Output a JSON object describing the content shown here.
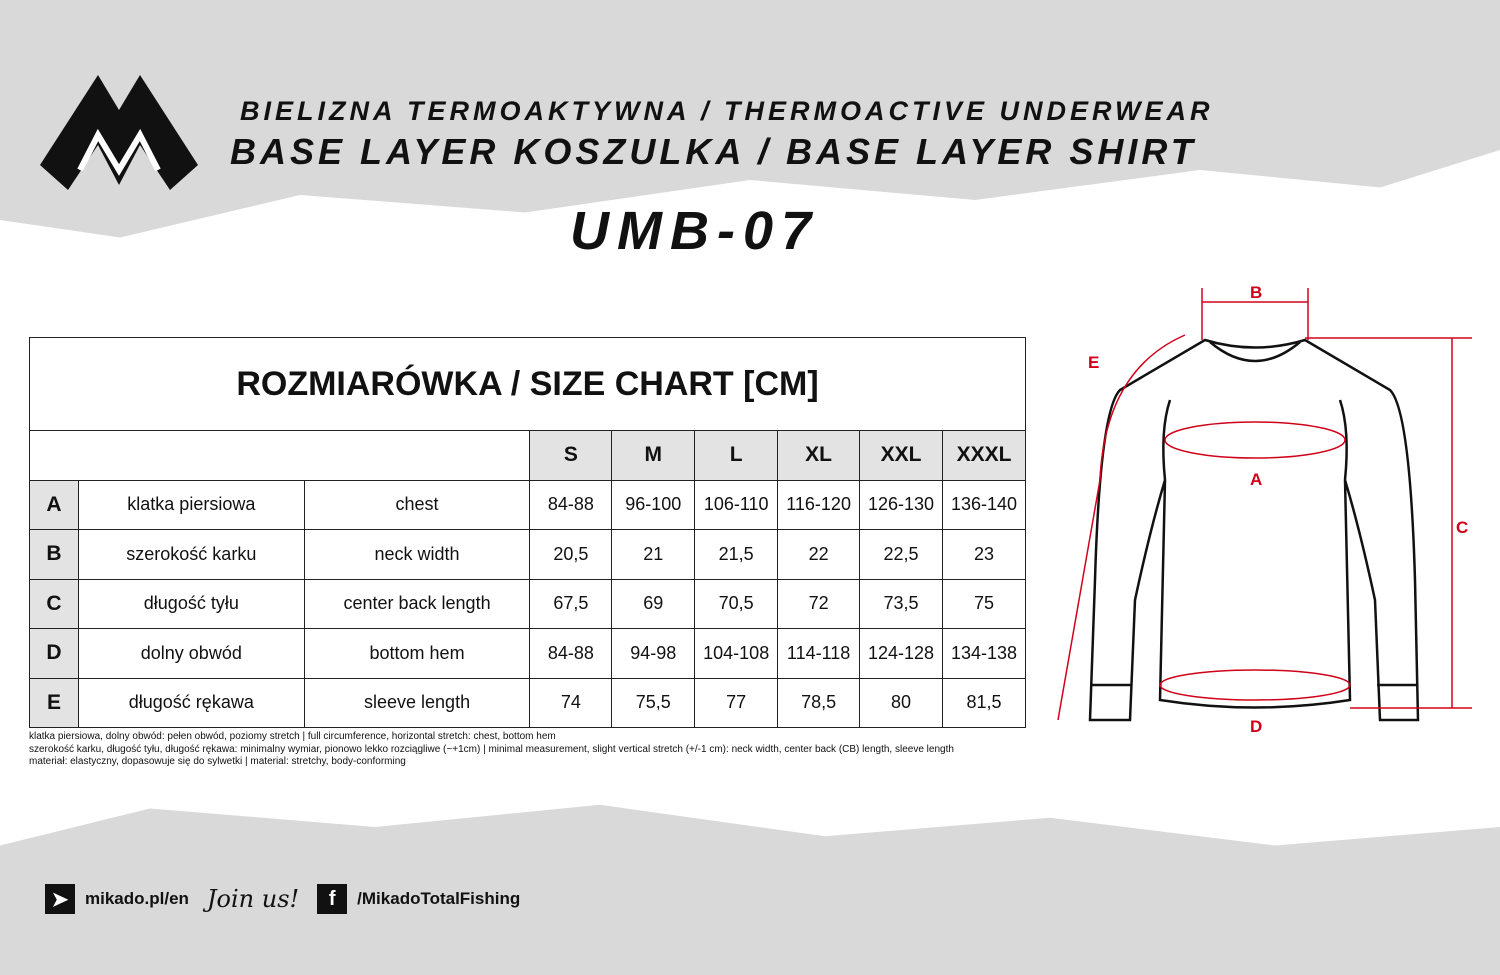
{
  "header": {
    "line1": "Bielizna termoaktywna / Thermoactive underwear",
    "line2": "Base layer koszulka / Base layer shirt",
    "model": "UMB-07"
  },
  "table": {
    "caption": "ROZMIARÓWKA / SIZE CHART [CM]",
    "sizes": [
      "S",
      "M",
      "L",
      "XL",
      "XXL",
      "XXXL"
    ],
    "rows": [
      {
        "letter": "A",
        "pl": "klatka piersiowa",
        "en": "chest",
        "values": [
          "84-88",
          "96-100",
          "106-110",
          "116-120",
          "126-130",
          "136-140"
        ]
      },
      {
        "letter": "B",
        "pl": "szerokość karku",
        "en": "neck width",
        "values": [
          "20,5",
          "21",
          "21,5",
          "22",
          "22,5",
          "23"
        ]
      },
      {
        "letter": "C",
        "pl": "długość tyłu",
        "en": "center back length",
        "values": [
          "67,5",
          "69",
          "70,5",
          "72",
          "73,5",
          "75"
        ]
      },
      {
        "letter": "D",
        "pl": "dolny obwód",
        "en": "bottom hem",
        "values": [
          "84-88",
          "94-98",
          "104-108",
          "114-118",
          "124-128",
          "134-138"
        ]
      },
      {
        "letter": "E",
        "pl": "długość rękawa",
        "en": "sleeve length",
        "values": [
          "74",
          "75,5",
          "77",
          "78,5",
          "80",
          "81,5"
        ]
      }
    ]
  },
  "notes": [
    "klatka piersiowa, dolny obwód: pełen obwód, poziomy stretch  |  full circumference, horizontal stretch: chest, bottom hem",
    "szerokość karku, długość tyłu, długość rękawa: minimalny wymiar, pionowo lekko rozciągliwe (~+1cm)  |  minimal measurement, slight vertical stretch (+/-1 cm): neck width, center back (CB) length, sleeve length",
    "materiał: elastyczny, dopasowuje się do sylwetki  |  material: stretchy, body-conforming"
  ],
  "diagram": {
    "labels": [
      "A",
      "B",
      "C",
      "D",
      "E"
    ],
    "accent": "#d0021b"
  },
  "footer": {
    "website": "mikado.pl/en",
    "join": "Join us!",
    "facebook": "/MikadoTotalFishing"
  }
}
